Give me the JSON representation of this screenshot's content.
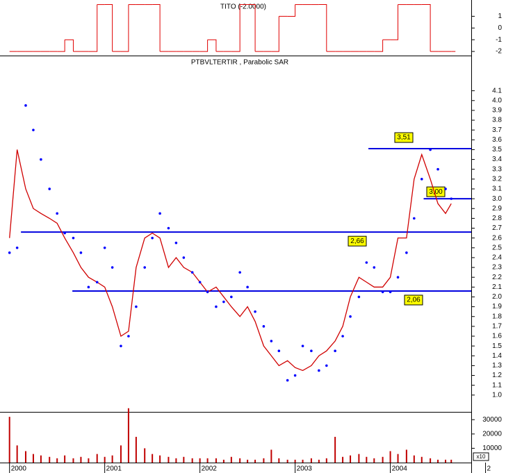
{
  "chart_data": [
    {
      "type": "step",
      "title": "TITO (-2.0000)",
      "color": "#e00000",
      "xlim": [
        1999.9,
        2004.85
      ],
      "ylim": [
        -2.35,
        2.27
      ],
      "yticks": [
        1,
        0,
        -1,
        -2
      ],
      "x": [
        2000.0,
        2000.08,
        2000.17,
        2000.25,
        2000.33,
        2000.42,
        2000.5,
        2000.58,
        2000.67,
        2000.75,
        2000.83,
        2000.92,
        2001.0,
        2001.08,
        2001.17,
        2001.25,
        2001.33,
        2001.42,
        2001.5,
        2001.58,
        2001.67,
        2001.75,
        2001.83,
        2001.92,
        2002.0,
        2002.08,
        2002.17,
        2002.25,
        2002.33,
        2002.42,
        2002.5,
        2002.58,
        2002.67,
        2002.75,
        2002.83,
        2002.92,
        2003.0,
        2003.08,
        2003.17,
        2003.25,
        2003.33,
        2003.42,
        2003.5,
        2003.58,
        2003.67,
        2003.75,
        2003.83,
        2003.92,
        2004.0,
        2004.08,
        2004.17,
        2004.25,
        2004.33,
        2004.42,
        2004.5,
        2004.58,
        2004.64
      ],
      "values": [
        -2,
        -2,
        -2,
        -2,
        -2,
        -2,
        -2,
        -1,
        -2,
        -2,
        -2,
        2,
        2,
        -2,
        -2,
        2,
        2,
        2,
        2,
        -2,
        -2,
        -2,
        -2,
        -2,
        -2,
        -1,
        -2,
        -2,
        -2,
        2,
        2,
        -2,
        -2,
        -2,
        1,
        1,
        2,
        2,
        2,
        2,
        -2,
        -2,
        -2,
        -2,
        -2,
        -2,
        -2,
        -1,
        -1,
        2,
        2,
        2,
        2,
        -2,
        -2,
        -2,
        -2
      ]
    },
    {
      "type": "line",
      "title": "PTBVLTERTIR , Parabolic SAR",
      "xlim": [
        1999.9,
        2004.85
      ],
      "ylim": [
        0.85,
        4.43
      ],
      "yticks": [
        {
          "value": 1,
          "label": "1.0"
        },
        1.1,
        1.2,
        1.3,
        1.4,
        1.5,
        1.6,
        1.7,
        1.8,
        1.9,
        {
          "value": 2,
          "label": "2.0"
        },
        2.1,
        2.2,
        2.3,
        2.4,
        2.5,
        2.6,
        2.7,
        2.8,
        2.9,
        {
          "value": 3,
          "label": "3.0"
        },
        3.1,
        3.2,
        3.3,
        3.4,
        3.5,
        3.6,
        3.7,
        3.8,
        3.9,
        {
          "value": 4,
          "label": "4.0"
        },
        4.1
      ],
      "x": [
        2000.0,
        2000.08,
        2000.17,
        2000.25,
        2000.33,
        2000.42,
        2000.5,
        2000.58,
        2000.67,
        2000.75,
        2000.83,
        2000.92,
        2001.0,
        2001.08,
        2001.17,
        2001.25,
        2001.33,
        2001.42,
        2001.5,
        2001.58,
        2001.67,
        2001.75,
        2001.83,
        2001.92,
        2002.0,
        2002.08,
        2002.17,
        2002.25,
        2002.33,
        2002.42,
        2002.5,
        2002.58,
        2002.67,
        2002.75,
        2002.83,
        2002.92,
        2003.0,
        2003.08,
        2003.17,
        2003.25,
        2003.33,
        2003.42,
        2003.5,
        2003.58,
        2003.67,
        2003.75,
        2003.83,
        2003.92,
        2004.0,
        2004.08,
        2004.17,
        2004.25,
        2004.33,
        2004.42,
        2004.5,
        2004.58,
        2004.64
      ],
      "series": [
        {
          "color": "#d00000",
          "values": [
            2.6,
            3.5,
            3.1,
            2.9,
            2.85,
            2.8,
            2.75,
            2.6,
            2.45,
            2.3,
            2.2,
            2.15,
            2.1,
            1.9,
            1.6,
            1.65,
            2.3,
            2.6,
            2.65,
            2.6,
            2.3,
            2.4,
            2.3,
            2.25,
            2.15,
            2.05,
            2.1,
            2.0,
            1.9,
            1.8,
            1.9,
            1.75,
            1.5,
            1.4,
            1.3,
            1.35,
            1.28,
            1.25,
            1.3,
            1.4,
            1.45,
            1.55,
            1.7,
            2.0,
            2.2,
            2.15,
            2.1,
            2.1,
            2.2,
            2.6,
            2.6,
            3.2,
            3.45,
            3.2,
            2.95,
            2.85,
            2.95
          ]
        },
        {
          "color": "#0000ff",
          "marker": "dot",
          "values": [
            2.45,
            2.5,
            3.95,
            3.7,
            3.4,
            3.1,
            2.85,
            2.65,
            2.6,
            2.45,
            2.1,
            2.15,
            2.5,
            2.3,
            1.5,
            1.6,
            1.9,
            2.3,
            2.6,
            2.85,
            2.7,
            2.55,
            2.4,
            2.25,
            2.15,
            2.05,
            1.9,
            1.95,
            2.0,
            2.25,
            2.1,
            1.85,
            1.7,
            1.55,
            1.45,
            1.15,
            1.2,
            1.5,
            1.45,
            1.25,
            1.3,
            1.45,
            1.6,
            1.8,
            2.0,
            2.35,
            2.3,
            2.05,
            2.05,
            2.2,
            2.45,
            2.8,
            3.2,
            3.5,
            3.3,
            3.1,
            3.0
          ]
        }
      ],
      "levels": [
        {
          "value": 3.51,
          "label": "3,51",
          "x_start": 2003.77
        },
        {
          "value": 3.0,
          "label": "3,00",
          "x_start": 2004.35
        },
        {
          "value": 2.66,
          "label": "2,66",
          "x_start": 2000.12
        },
        {
          "value": 2.06,
          "label": "2,06",
          "x_start": 2000.66
        }
      ],
      "level_color": "#0000e0",
      "label_fill": "#ffff00"
    },
    {
      "type": "bar",
      "color": "#c00000",
      "xlim": [
        1999.9,
        2004.85
      ],
      "ylim": [
        0,
        34000
      ],
      "yticks": [
        30000,
        20000,
        10000
      ],
      "unit_label": "x10",
      "xticks": [
        2000,
        2001,
        2002,
        2003,
        2004,
        {
          "value": 2005,
          "label": "2"
        }
      ],
      "x": [
        2000.0,
        2000.08,
        2000.17,
        2000.25,
        2000.33,
        2000.42,
        2000.5,
        2000.58,
        2000.67,
        2000.75,
        2000.83,
        2000.92,
        2001.0,
        2001.08,
        2001.17,
        2001.25,
        2001.33,
        2001.42,
        2001.5,
        2001.58,
        2001.67,
        2001.75,
        2001.83,
        2001.92,
        2002.0,
        2002.08,
        2002.17,
        2002.25,
        2002.33,
        2002.42,
        2002.5,
        2002.58,
        2002.67,
        2002.75,
        2002.83,
        2002.92,
        2003.0,
        2003.08,
        2003.17,
        2003.25,
        2003.33,
        2003.42,
        2003.5,
        2003.58,
        2003.67,
        2003.75,
        2003.83,
        2003.92,
        2004.0,
        2004.08,
        2004.17,
        2004.25,
        2004.33,
        2004.42,
        2004.5,
        2004.58,
        2004.64
      ],
      "values": [
        32000,
        12000,
        8000,
        6000,
        5000,
        4000,
        3000,
        5000,
        3000,
        4000,
        3000,
        6000,
        4000,
        5000,
        12000,
        38000,
        18000,
        10000,
        6000,
        5000,
        4000,
        3000,
        4000,
        3000,
        3000,
        3000,
        3000,
        2000,
        4000,
        3000,
        2000,
        2000,
        3000,
        9000,
        3000,
        2000,
        2000,
        2000,
        3000,
        2000,
        3000,
        18000,
        4000,
        5000,
        6000,
        4000,
        3000,
        4000,
        8000,
        6000,
        9000,
        5000,
        4000,
        3000,
        2000,
        2000,
        2000
      ]
    }
  ]
}
